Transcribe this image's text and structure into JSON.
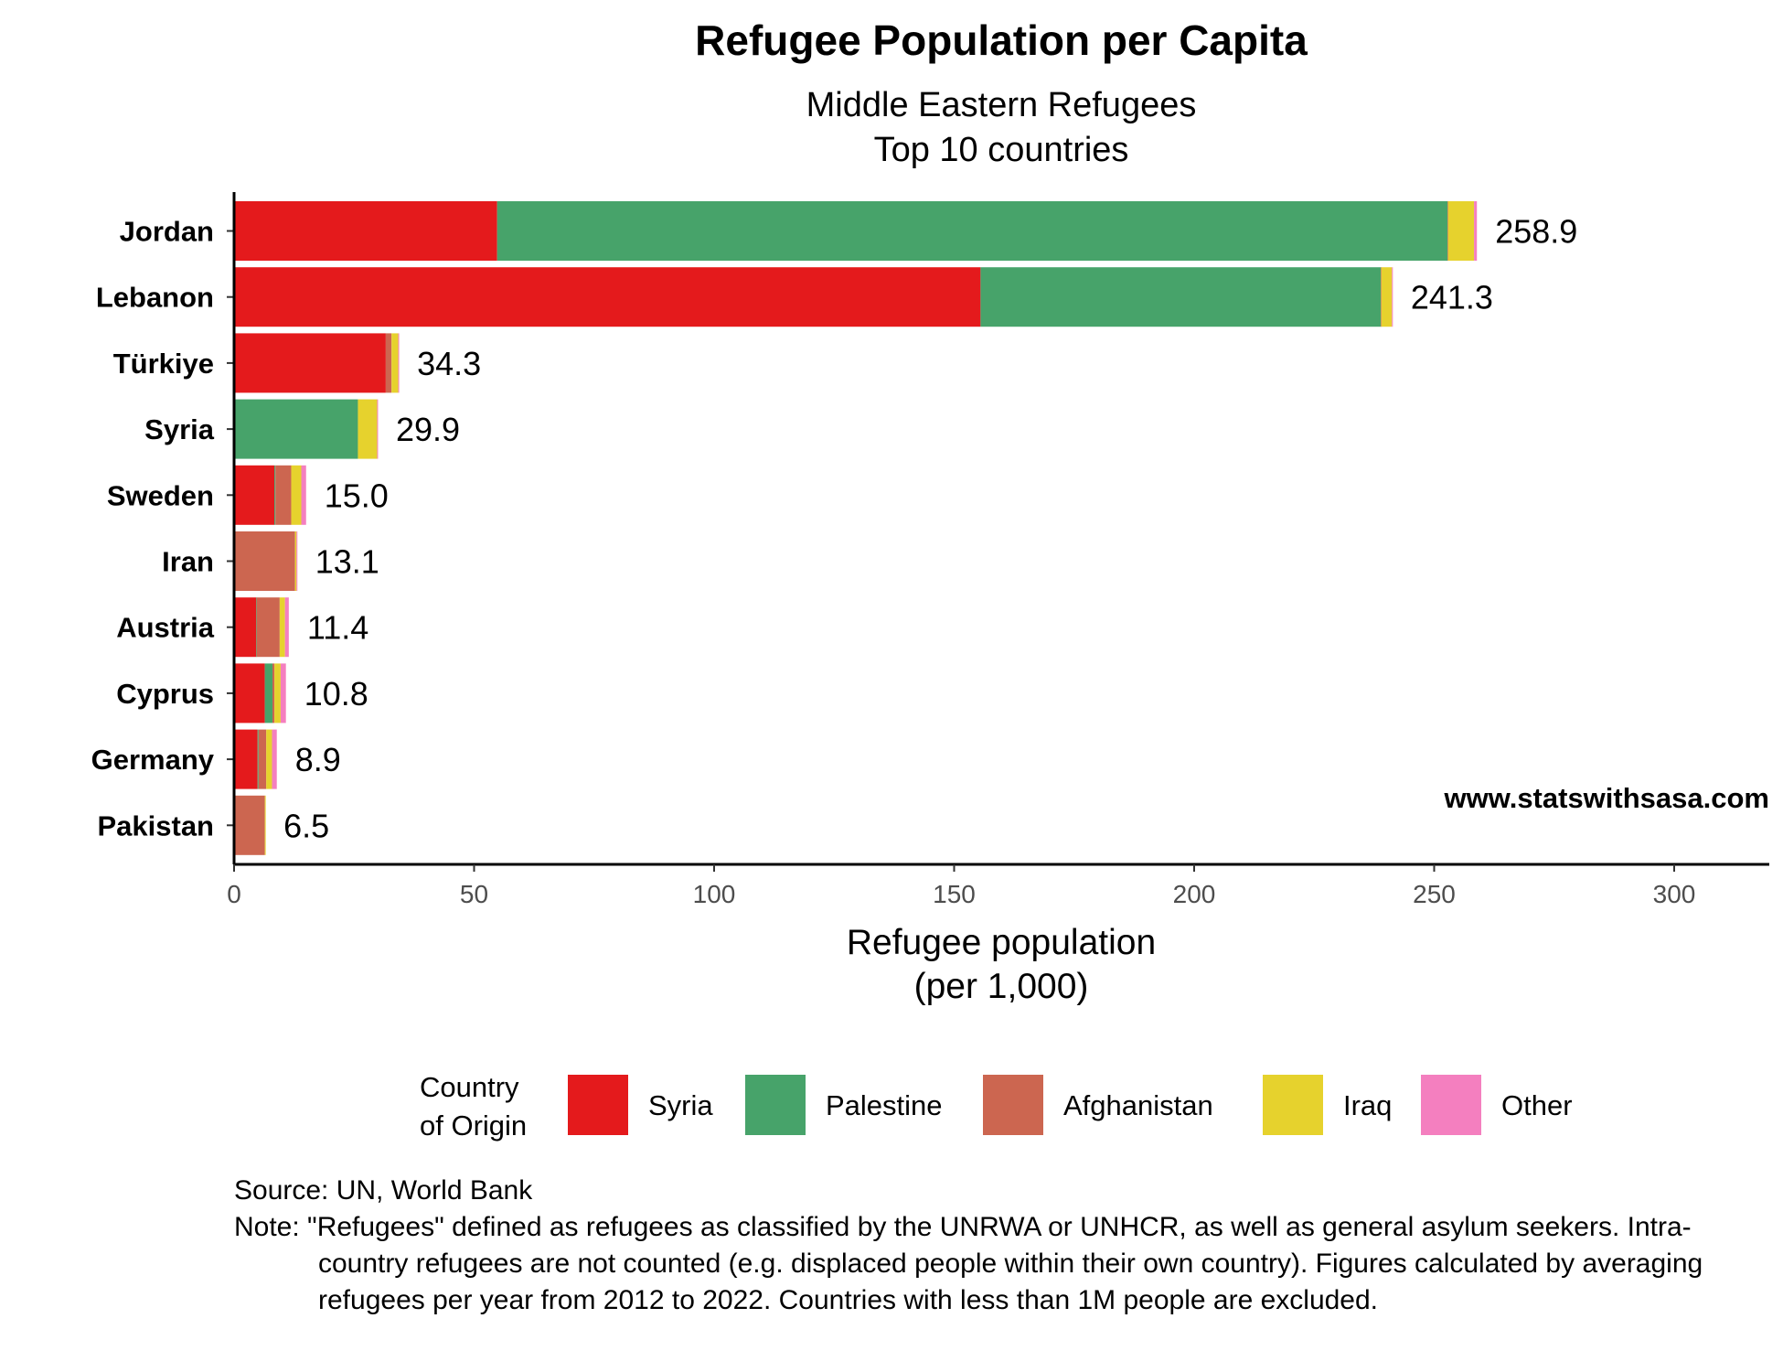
{
  "chart_data": {
    "type": "bar",
    "orientation": "horizontal",
    "stacked": true,
    "title": "Refugee Population per Capita",
    "subtitle_lines": [
      "Middle Eastern Refugees",
      "Top 10 countries"
    ],
    "xlabel_lines": [
      "Refugee population",
      "(per 1,000)"
    ],
    "ylabel": "",
    "xlim": [
      0,
      320
    ],
    "xticks": [
      0,
      50,
      100,
      150,
      200,
      250,
      300
    ],
    "grid": false,
    "categories": [
      "Jordan",
      "Lebanon",
      "Türkiye",
      "Syria",
      "Sweden",
      "Iran",
      "Austria",
      "Cyprus",
      "Germany",
      "Pakistan"
    ],
    "totals": [
      "258.9",
      "241.3",
      "34.3",
      "29.9",
      "15.0",
      "13.1",
      "11.4",
      "10.8",
      "8.9",
      "6.5"
    ],
    "series": [
      {
        "name": "Syria",
        "color": "#e41a1c",
        "values": [
          54.8,
          155.5,
          31.6,
          0,
          8.4,
          0,
          4.6,
          6.4,
          4.9,
          0
        ]
      },
      {
        "name": "Palestine",
        "color": "#47a36a",
        "values": [
          198.0,
          83.4,
          0,
          25.8,
          0.2,
          0.1,
          0.1,
          1.6,
          0.2,
          0
        ]
      },
      {
        "name": "Afghanistan",
        "color": "#cc6650",
        "values": [
          0.1,
          0.1,
          1.2,
          0,
          3.3,
          12.6,
          4.8,
          0.4,
          1.6,
          6.4
        ]
      },
      {
        "name": "Iraq",
        "color": "#e6d22d",
        "values": [
          5.4,
          2.2,
          1.4,
          4.0,
          2.1,
          0.3,
          1.1,
          1.3,
          1.2,
          0.1
        ]
      },
      {
        "name": "Other",
        "color": "#f47fbf",
        "values": [
          0.6,
          0.1,
          0.1,
          0.1,
          1.0,
          0.1,
          0.8,
          1.1,
          1.0,
          0
        ]
      }
    ],
    "legend": {
      "title_lines": [
        "Country",
        "of Origin"
      ],
      "position": "bottom"
    },
    "annotation": "www.statswithsasa.com"
  },
  "caption": {
    "source": "Source: UN, World Bank",
    "note": "Note: \"Refugees\" defined as refugees as classified by the UNRWA or UNHCR, as well as general asylum seekers. Intra-country refugees are not counted (e.g. displaced people within their own country). Figures calculated by averaging refugees per year from 2012 to 2022. Countries with less than 1M people are excluded."
  }
}
